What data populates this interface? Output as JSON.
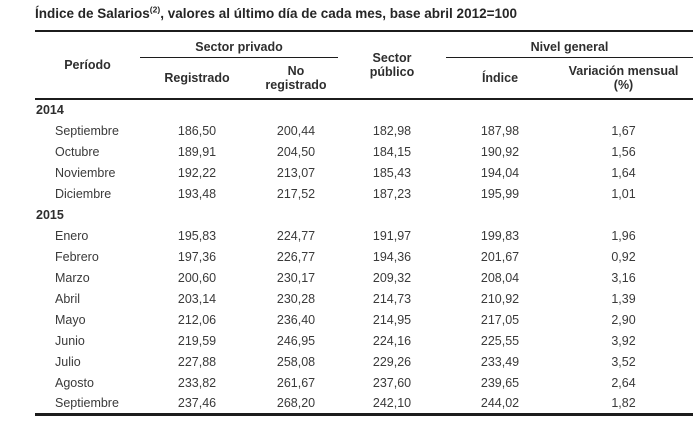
{
  "title": {
    "main": "Índice de Salarios",
    "superscript": "(2)",
    "rest": ", valores al último día de cada mes, base abril 2012=100"
  },
  "table": {
    "headers": {
      "periodo": "Período",
      "sector_privado": "Sector privado",
      "registrado": "Registrado",
      "no_registrado": "No\nregistrado",
      "sector_publico": "Sector\npúblico",
      "nivel_general": "Nivel general",
      "indice": "Índice",
      "variacion_mensual": "Variación mensual\n(%)"
    },
    "sections": [
      {
        "year": "2014",
        "rows": [
          {
            "month": "Septiembre",
            "values": [
              "186,50",
              "200,44",
              "182,98",
              "187,98",
              "1,67"
            ]
          },
          {
            "month": "Octubre",
            "values": [
              "189,91",
              "204,50",
              "184,15",
              "190,92",
              "1,56"
            ]
          },
          {
            "month": "Noviembre",
            "values": [
              "192,22",
              "213,07",
              "185,43",
              "194,04",
              "1,64"
            ]
          },
          {
            "month": "Diciembre",
            "values": [
              "193,48",
              "217,52",
              "187,23",
              "195,99",
              "1,01"
            ]
          }
        ]
      },
      {
        "year": "2015",
        "rows": [
          {
            "month": "Enero",
            "values": [
              "195,83",
              "224,77",
              "191,97",
              "199,83",
              "1,96"
            ]
          },
          {
            "month": "Febrero",
            "values": [
              "197,36",
              "226,77",
              "194,36",
              "201,67",
              "0,92"
            ]
          },
          {
            "month": "Marzo",
            "values": [
              "200,60",
              "230,17",
              "209,32",
              "208,04",
              "3,16"
            ]
          },
          {
            "month": "Abril",
            "values": [
              "203,14",
              "230,28",
              "214,73",
              "210,92",
              "1,39"
            ]
          },
          {
            "month": "Mayo",
            "values": [
              "212,06",
              "236,40",
              "214,95",
              "217,05",
              "2,90"
            ]
          },
          {
            "month": "Junio",
            "values": [
              "219,59",
              "246,95",
              "224,16",
              "225,55",
              "3,92"
            ]
          },
          {
            "month": "Julio",
            "values": [
              "227,88",
              "258,08",
              "229,26",
              "233,49",
              "3,52"
            ]
          },
          {
            "month": "Agosto",
            "values": [
              "233,82",
              "261,67",
              "237,60",
              "239,65",
              "2,64"
            ]
          },
          {
            "month": "Septiembre",
            "values": [
              "237,46",
              "268,20",
              "242,10",
              "244,02",
              "1,82"
            ]
          }
        ]
      }
    ]
  },
  "colors": {
    "text": "#3a3a3a",
    "line": "#1c1c1c",
    "background": "#ffffff"
  }
}
